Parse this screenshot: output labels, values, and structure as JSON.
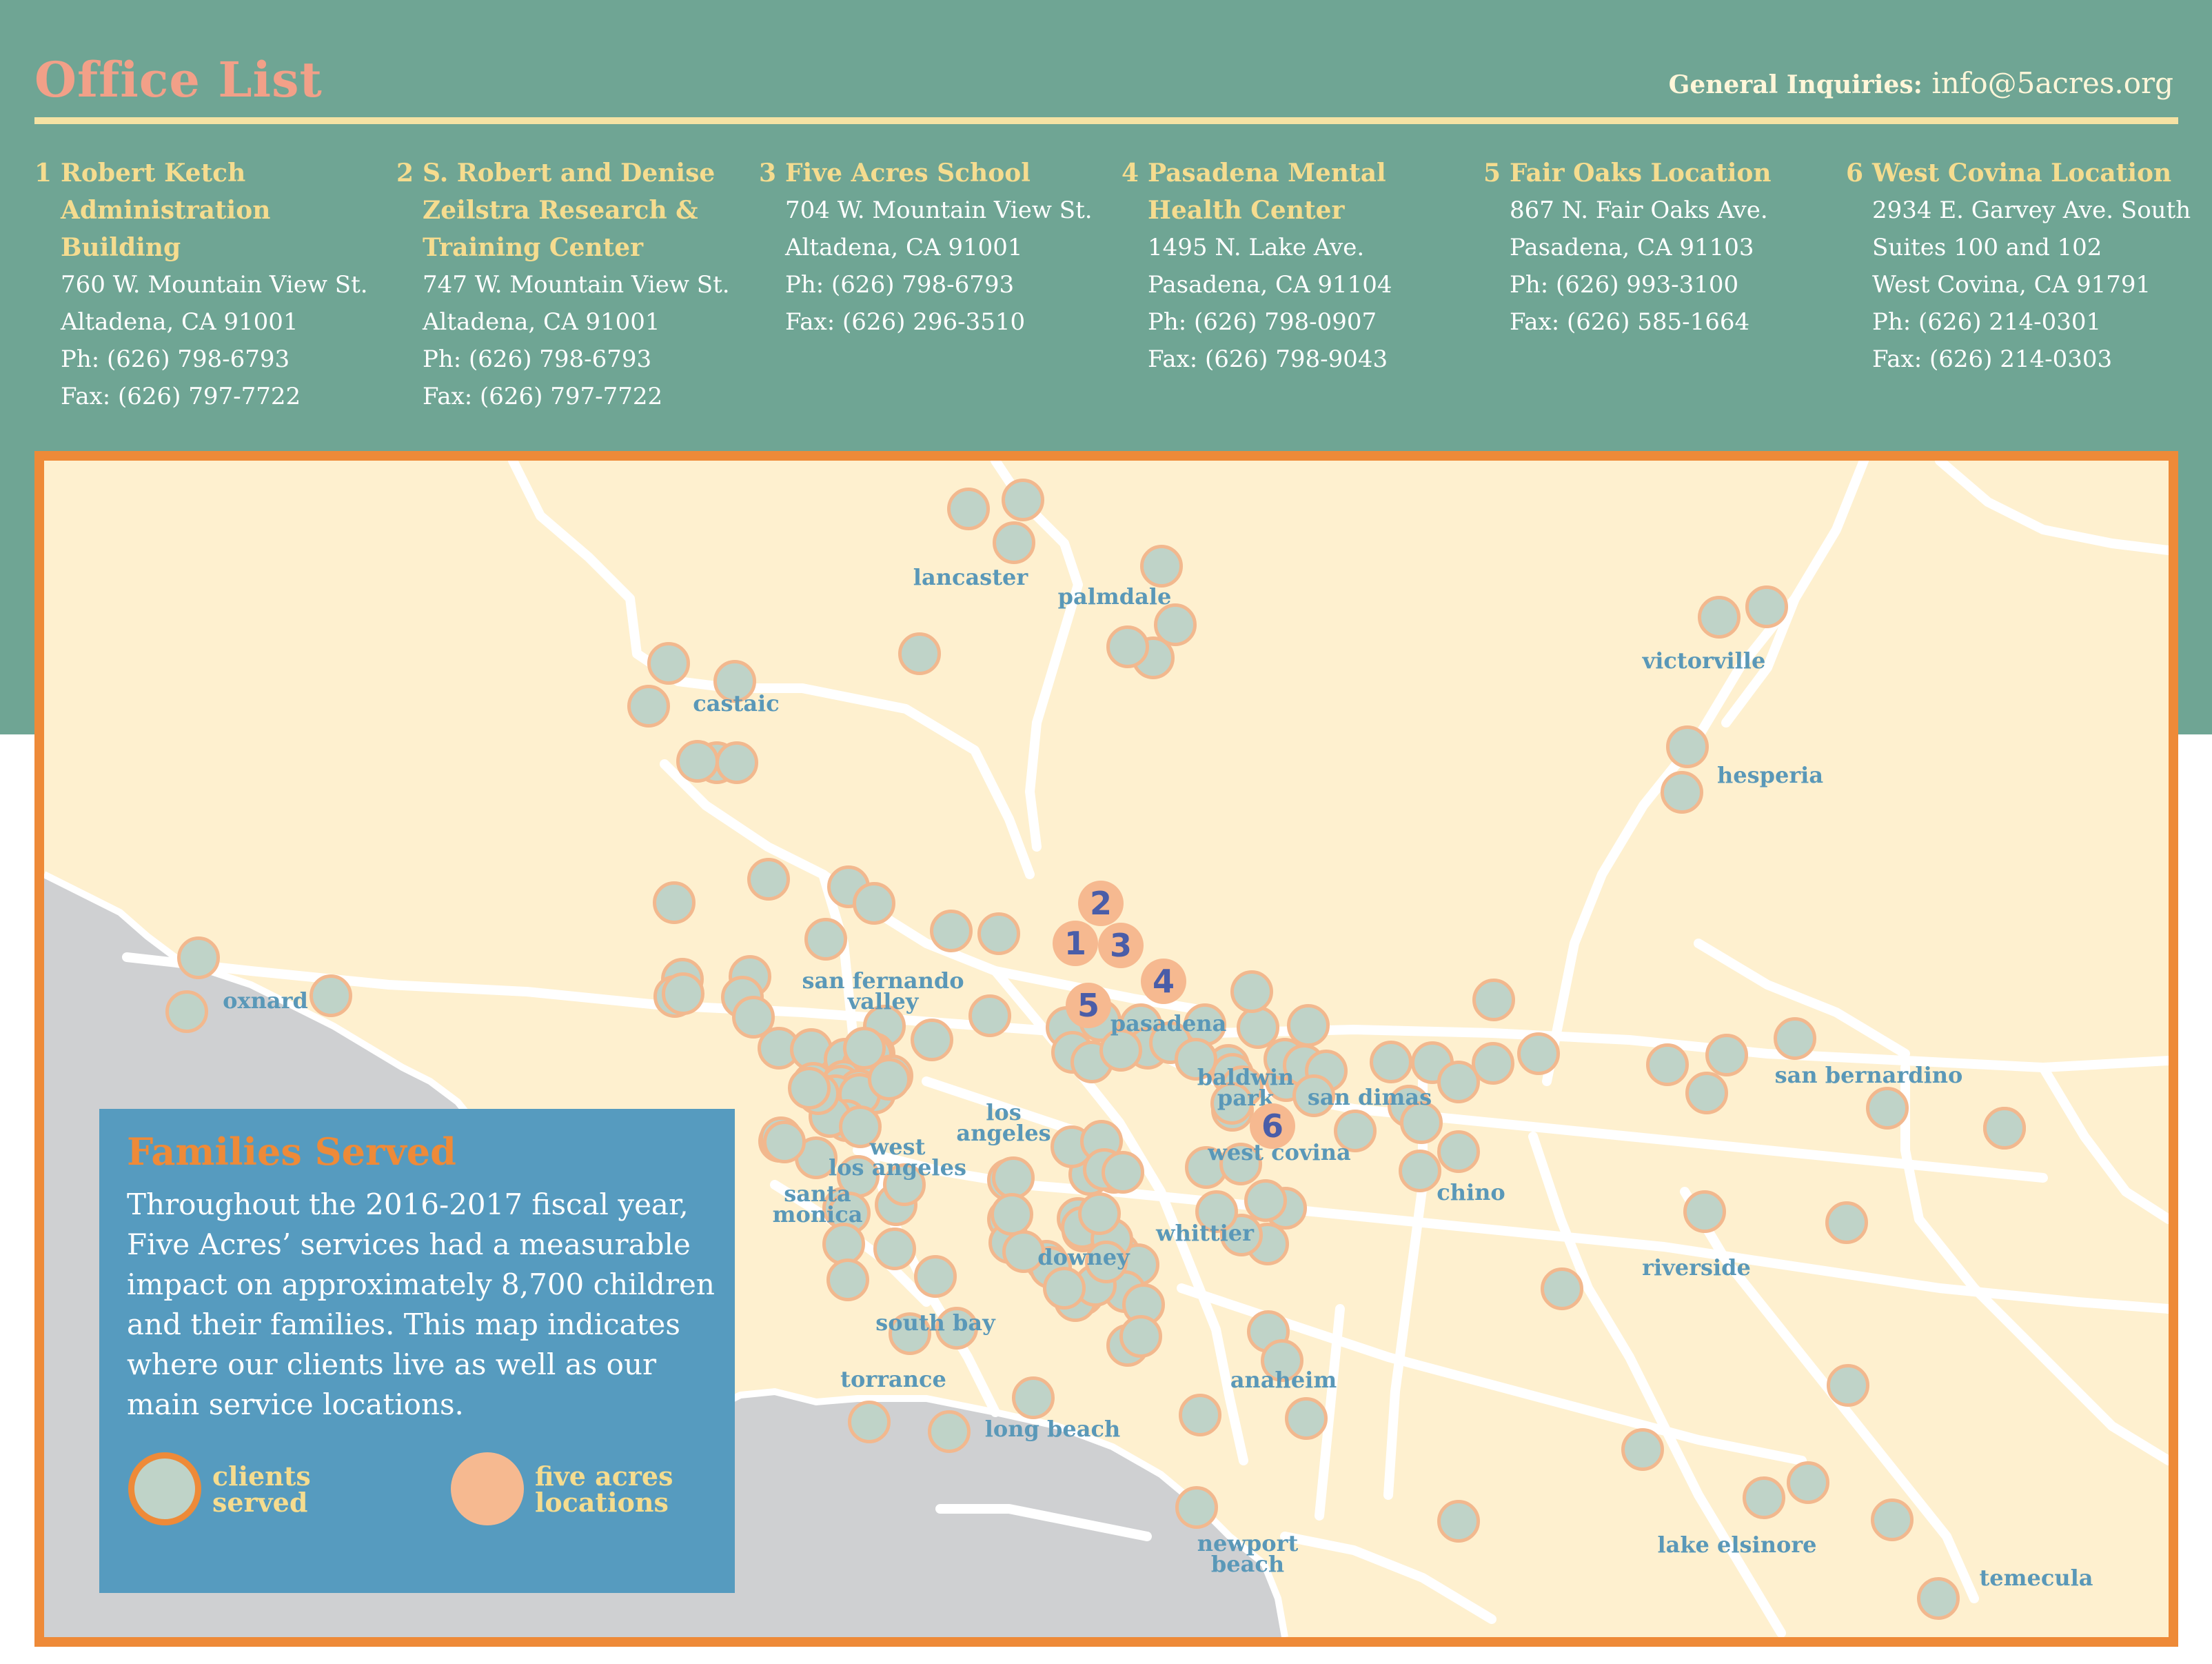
{
  "header": {
    "title": "Office List",
    "inquiries_label": "General Inquiries:",
    "inquiries_email": "info@5acres.org"
  },
  "offices": [
    {
      "number": "1",
      "name": [
        "Robert Ketch",
        "Administration",
        "Building"
      ],
      "lines": [
        "760 W. Mountain View St.",
        "Altadena, CA 91001",
        "Ph: (626) 798-6793",
        "Fax: (626) 797-7722"
      ]
    },
    {
      "number": "2",
      "name": [
        "S. Robert and Denise",
        "Zeilstra Research &",
        "Training Center"
      ],
      "lines": [
        "747 W. Mountain View St.",
        "Altadena, CA 91001",
        "Ph: (626) 798-6793",
        "Fax: (626) 797-7722"
      ]
    },
    {
      "number": "3",
      "name": [
        "Five Acres School"
      ],
      "lines": [
        "704 W. Mountain View St.",
        "Altadena, CA 91001",
        "Ph: (626) 798-6793",
        "Fax: (626) 296-3510"
      ]
    },
    {
      "number": "4",
      "name": [
        "Pasadena Mental",
        "Health Center"
      ],
      "lines": [
        "1495 N. Lake Ave.",
        "Pasadena, CA 91104",
        "Ph: (626) 798-0907",
        "Fax: (626) 798-9043"
      ]
    },
    {
      "number": "5",
      "name": [
        "Fair Oaks Location"
      ],
      "lines": [
        "867 N. Fair Oaks Ave.",
        "Pasadena, CA 91103",
        "Ph: (626) 993-3100",
        "Fax: (626) 585-1664"
      ]
    },
    {
      "number": "6",
      "name": [
        "West Covina Location"
      ],
      "lines": [
        "2934 E. Garvey Ave. South",
        "Suites 100 and 102",
        "West Covina, CA 91791",
        "Ph: (626) 214-0301",
        "Fax: (626) 214-0303"
      ]
    }
  ],
  "map": {
    "cities": [
      "lancaster",
      "palmdale",
      "castaic",
      "victorville",
      "hesperia",
      "oxnard",
      "san fernando\nvalley",
      "pasadena",
      "baldwin\npark",
      "san dimas",
      "san bernardino",
      "los\nangeles",
      "west\nlos angeles",
      "west covina",
      "santa\nmonica",
      "chino",
      "whittier",
      "downey",
      "riverside",
      "south bay",
      "torrance",
      "anaheim",
      "long beach",
      "newport\nbeach",
      "lake elsinore",
      "temecula"
    ],
    "locations": [
      "1",
      "2",
      "3",
      "4",
      "5",
      "6"
    ],
    "colors": {
      "client_fill": "#bfd3c8",
      "client_ring": "#f2b88e",
      "location_fill": "#f6b990",
      "frame": "#ee8a38",
      "land": "#fef0cf",
      "ocean": "#cfd0d2",
      "road": "#ffffff"
    }
  },
  "panel": {
    "title": "Families Served",
    "body": "Throughout the 2016-2017 fiscal year, Five Acres’ services had a measurable impact on approximately 8,700 children and their families. This map indicates where our clients live as well as our main service locations.",
    "legend_clients": "clients\nserved",
    "legend_locations": "five acres\nlocations"
  }
}
